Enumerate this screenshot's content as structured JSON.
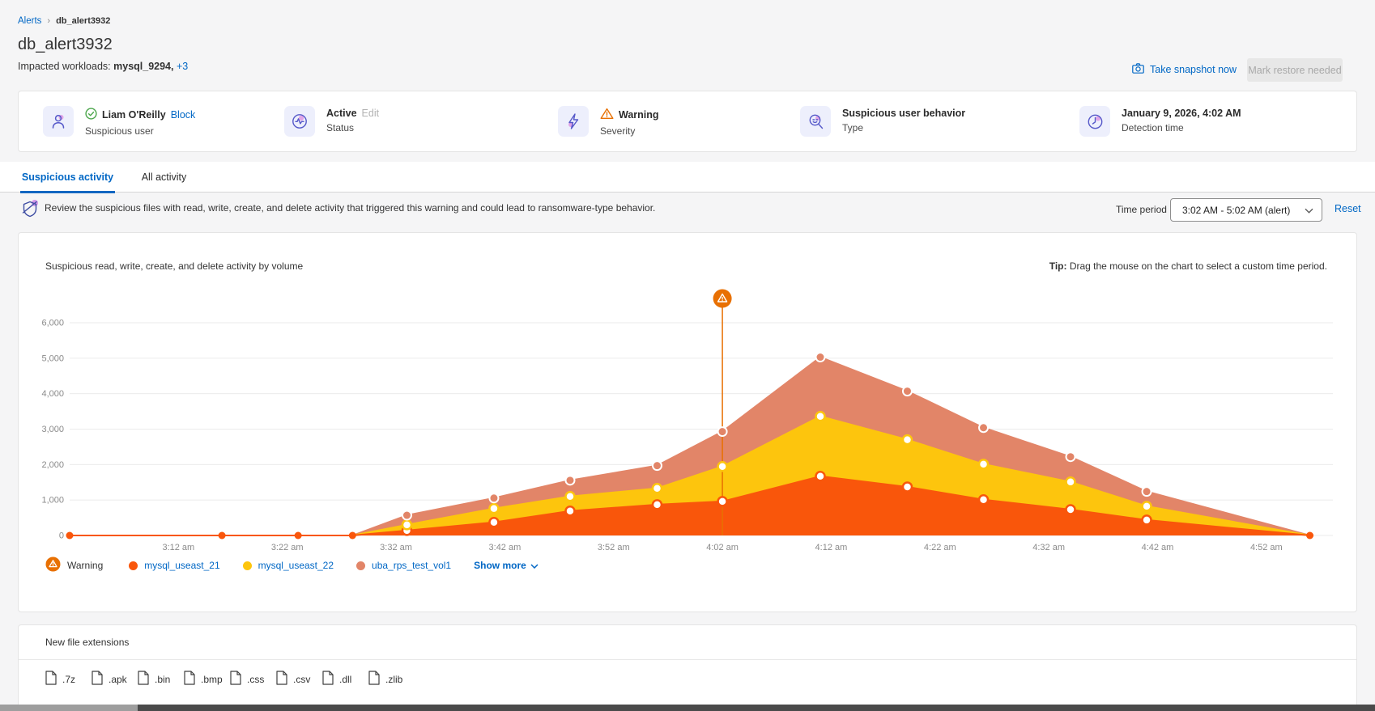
{
  "breadcrumb": {
    "parent": "Alerts",
    "current": "db_alert3932"
  },
  "header": {
    "title": "db_alert3932",
    "impacted_label": "Impacted workloads:",
    "impacted_value": "mysql_9294,",
    "impacted_more": "+3",
    "take_snapshot_label": "Take snapshot now",
    "mark_restore_label": "Mark restore needed"
  },
  "cards": [
    {
      "title": "Liam O'Reilly",
      "action": "Block",
      "subtitle": "Suspicious user"
    },
    {
      "title": "Active",
      "action": "Edit",
      "subtitle": "Status"
    },
    {
      "title": "Warning",
      "subtitle": "Severity"
    },
    {
      "title": "Suspicious user behavior",
      "subtitle": "Type"
    },
    {
      "title": "January 9, 2026, 4:02 AM",
      "subtitle": "Detection time"
    }
  ],
  "tabs": [
    {
      "label": "Suspicious activity",
      "active": true
    },
    {
      "label": "All activity",
      "active": false
    }
  ],
  "subheader": {
    "note": "Review the suspicious files with read, write, create, and delete activity that triggered this warning and could lead to ransomware-type behavior.",
    "time_period_label": "Time period",
    "time_period_value": "3:02 AM - 5:02 AM (alert)",
    "reset_label": "Reset"
  },
  "chart_section": {
    "title": "Suspicious read, write, create, and delete activity by volume",
    "tip_label": "Tip:",
    "tip_text": " Drag the mouse on the chart to select a custom time period.",
    "legend_warning_label": "Warning",
    "show_more_label": "Show more"
  },
  "chart_data": {
    "type": "area",
    "stacked": true,
    "title": "Suspicious read, write, create, and delete activity by volume",
    "x": [
      "3:02 am",
      "3:16 am",
      "3:23 am",
      "3:28 am",
      "3:33 am",
      "3:41 am",
      "3:48 am",
      "3:56 am",
      "4:02 am",
      "4:11 am",
      "4:19 am",
      "4:26 am",
      "4:34 am",
      "4:41 am",
      "4:56 am"
    ],
    "series": [
      {
        "name": "mysql_useast_21",
        "color": "#F9560B",
        "values": [
          0,
          0,
          0,
          0,
          140,
          370,
          690,
          870,
          960,
          1670,
          1370,
          1010,
          730,
          435,
          0
        ]
      },
      {
        "name": "mysql_useast_22",
        "color": "#FDC50D",
        "values": [
          0,
          0,
          0,
          0,
          160,
          390,
          410,
          460,
          985,
          1690,
          1330,
          1000,
          780,
          390,
          0
        ]
      },
      {
        "name": "uba_rps_test_vol1",
        "color": "#E28568",
        "values": [
          0,
          0,
          0,
          0,
          270,
          295,
          455,
          640,
          985,
          1670,
          1370,
          1030,
          710,
          415,
          0
        ]
      }
    ],
    "annotation": {
      "label": "Warning",
      "x": "4:02 am",
      "color": "#E87002"
    },
    "xlim": [
      "3:02 am",
      "4:57 am"
    ],
    "ylim": [
      0,
      6000
    ],
    "yticks": [
      "0",
      "1,000",
      "2,000",
      "3,000",
      "4,000",
      "5,000",
      "6,000"
    ],
    "xticks": [
      "3:12 am",
      "3:22 am",
      "3:32 am",
      "3:42 am",
      "3:52 am",
      "4:02 am",
      "4:12 am",
      "4:22 am",
      "4:32 am",
      "4:42 am",
      "4:52 am"
    ],
    "grid": true,
    "legend_position": "bottom"
  },
  "extensions": {
    "title": "New file extensions",
    "items": [
      ".7z",
      ".apk",
      ".bin",
      ".bmp",
      ".css",
      ".csv",
      ".dll",
      ".zlib"
    ]
  }
}
